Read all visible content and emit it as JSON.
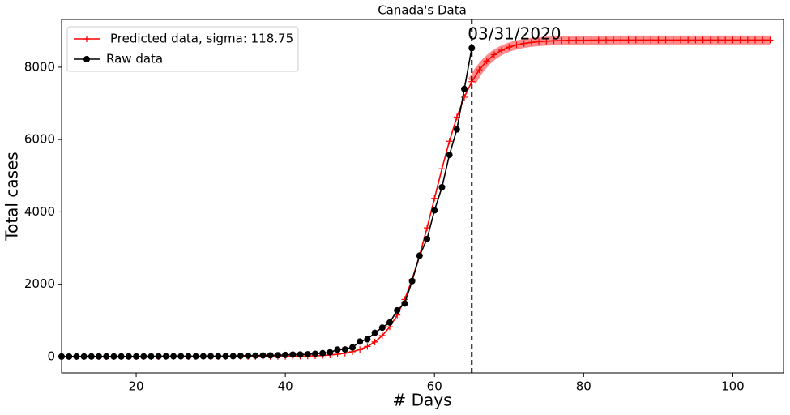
{
  "chart_data": {
    "type": "line",
    "title": "Canada's Data",
    "x_label": "# Days",
    "y_label": "Total cases",
    "xlim": [
      10,
      106.8
    ],
    "ylim": [
      -450,
      9320
    ],
    "xticks": [
      20,
      40,
      60,
      80,
      100
    ],
    "yticks": [
      0,
      2000,
      4000,
      6000,
      8000
    ],
    "legend": "upper left",
    "vline_x": 65,
    "annotations": [
      {
        "text": "03/31/2020",
        "x": 65,
        "y": 8800
      }
    ],
    "series": [
      {
        "name": "Predicted data, sigma: 118.75",
        "color": "#ff0000",
        "marker": "+",
        "x": [
          10,
          11,
          12,
          13,
          14,
          15,
          16,
          17,
          18,
          19,
          20,
          21,
          22,
          23,
          24,
          25,
          26,
          27,
          28,
          29,
          30,
          31,
          32,
          33,
          34,
          35,
          36,
          37,
          38,
          39,
          40,
          41,
          42,
          43,
          44,
          45,
          46,
          47,
          48,
          49,
          50,
          51,
          52,
          53,
          54,
          55,
          56,
          57,
          58,
          59,
          60,
          61,
          62,
          63,
          64,
          65,
          66,
          67,
          68,
          69,
          70,
          71,
          72,
          73,
          74,
          75,
          76,
          77,
          78,
          79,
          80,
          81,
          82,
          83,
          84,
          85,
          86,
          87,
          88,
          89,
          90,
          91,
          92,
          93,
          94,
          95,
          96,
          97,
          98,
          99,
          100,
          101,
          102,
          103,
          104,
          105
        ],
        "values": [
          0,
          0,
          0,
          0,
          0,
          0,
          0,
          0,
          0,
          0,
          0,
          0,
          0,
          0,
          0,
          0,
          0,
          0,
          0,
          0,
          0,
          0,
          0,
          0,
          0,
          1,
          1,
          2,
          2,
          3,
          5,
          7,
          10,
          14,
          21,
          30,
          44,
          64,
          93,
          135,
          195,
          281,
          405,
          580,
          821,
          1148,
          1579,
          2133,
          2796,
          3558,
          4375,
          5192,
          5954,
          6620,
          7170,
          7602,
          7929,
          8171,
          8345,
          8468,
          8555,
          8616,
          8657,
          8686,
          8706,
          8720,
          8730,
          8736,
          8741,
          8744,
          8746,
          8747,
          8748,
          8749,
          8750,
          8750,
          8750,
          8750,
          8750,
          8750,
          8750,
          8750,
          8750,
          8750,
          8750,
          8750,
          8750,
          8750,
          8750,
          8750,
          8750,
          8750,
          8750,
          8750,
          8750,
          8750
        ]
      },
      {
        "name": "Raw data",
        "color": "#000000",
        "marker": "o",
        "x": [
          10,
          11,
          12,
          13,
          14,
          15,
          16,
          17,
          18,
          19,
          20,
          21,
          22,
          23,
          24,
          25,
          26,
          27,
          28,
          29,
          30,
          31,
          32,
          33,
          34,
          35,
          36,
          37,
          38,
          39,
          40,
          41,
          42,
          43,
          44,
          45,
          46,
          47,
          48,
          49,
          50,
          51,
          52,
          53,
          54,
          55,
          56,
          57,
          58,
          59,
          60,
          61,
          62,
          63,
          64,
          65
        ],
        "values": [
          1,
          1,
          2,
          3,
          3,
          4,
          4,
          4,
          4,
          4,
          4,
          5,
          5,
          7,
          7,
          7,
          7,
          7,
          7,
          8,
          8,
          9,
          10,
          11,
          20,
          24,
          27,
          30,
          33,
          37,
          45,
          54,
          57,
          62,
          77,
          93,
          117,
          193,
          198,
          252,
          415,
          478,
          657,
          800,
          943,
          1277,
          1469,
          2088,
          2790,
          3251,
          4042,
          4682,
          5576,
          6280,
          7398,
          8527
        ]
      }
    ]
  }
}
